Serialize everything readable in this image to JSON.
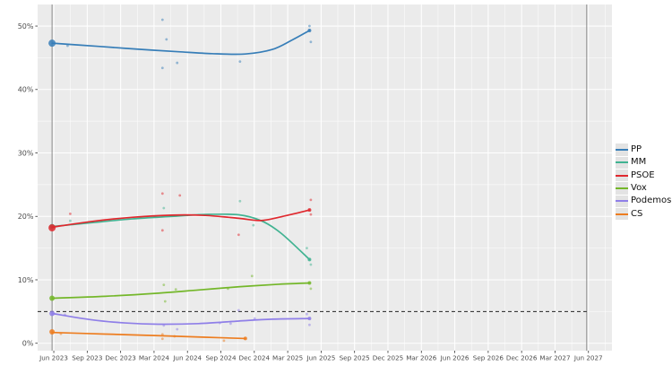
{
  "chart_data": {
    "type": "line",
    "xlabel": "",
    "ylabel": "",
    "x_ticks": [
      {
        "t": 2023.417,
        "label": "Jun 2023"
      },
      {
        "t": 2023.667,
        "label": "Sep 2023"
      },
      {
        "t": 2023.917,
        "label": "Dec 2023"
      },
      {
        "t": 2024.167,
        "label": "Mar 2024"
      },
      {
        "t": 2024.417,
        "label": "Jun 2024"
      },
      {
        "t": 2024.667,
        "label": "Sep 2024"
      },
      {
        "t": 2024.917,
        "label": "Dec 2024"
      },
      {
        "t": 2025.167,
        "label": "Mar 2025"
      },
      {
        "t": 2025.417,
        "label": "Jun 2025"
      },
      {
        "t": 2025.667,
        "label": "Sep 2025"
      },
      {
        "t": 2025.917,
        "label": "Dec 2025"
      },
      {
        "t": 2026.167,
        "label": "Mar 2026"
      },
      {
        "t": 2026.417,
        "label": "Jun 2026"
      },
      {
        "t": 2026.667,
        "label": "Sep 2026"
      },
      {
        "t": 2026.917,
        "label": "Dec 2026"
      },
      {
        "t": 2027.167,
        "label": "Mar 2027"
      },
      {
        "t": 2027.417,
        "label": "Jun 2027"
      }
    ],
    "y_ticks": [
      {
        "v": 0,
        "label": "0%"
      },
      {
        "v": 10,
        "label": "10%"
      },
      {
        "v": 20,
        "label": "20%"
      },
      {
        "v": 30,
        "label": "30%"
      },
      {
        "v": 40,
        "label": "40%"
      },
      {
        "v": 50,
        "label": "50%"
      }
    ],
    "x_range": [
      2023.296,
      2027.593
    ],
    "y_range": [
      -1.17,
      53.4
    ],
    "grid": "on",
    "legend_position": "right",
    "threshold_line": {
      "y": 5,
      "style": "dashed",
      "color": "#222222",
      "x_end": 2027.404
    },
    "event_lines": [
      {
        "t": 2023.404,
        "color": "#8a8a8a"
      },
      {
        "t": 2027.404,
        "color": "#8a8a8a"
      }
    ],
    "series": [
      {
        "name": "PP",
        "color": "#377eb8",
        "election_point": [
          2023.404,
          47.3
        ],
        "end_point": [
          2025.33,
          49.3
        ],
        "line": [
          [
            2023.404,
            47.3
          ],
          [
            2023.75,
            46.8
          ],
          [
            2024.05,
            46.35
          ],
          [
            2024.35,
            45.95
          ],
          [
            2024.6,
            45.65
          ],
          [
            2024.85,
            45.6
          ],
          [
            2025.05,
            46.3
          ],
          [
            2025.2,
            47.8
          ],
          [
            2025.33,
            49.3
          ]
        ],
        "points": [
          [
            2023.52,
            46.9
          ],
          [
            2024.23,
            51.0
          ],
          [
            2024.26,
            47.9
          ],
          [
            2024.23,
            43.4
          ],
          [
            2024.34,
            44.2
          ],
          [
            2024.81,
            44.4
          ],
          [
            2025.33,
            50.0
          ],
          [
            2025.34,
            47.5
          ]
        ]
      },
      {
        "name": "MM",
        "color": "#41b392",
        "election_point": [
          2023.404,
          18.4
        ],
        "end_point": [
          2025.33,
          13.2
        ],
        "line": [
          [
            2023.404,
            18.4
          ],
          [
            2023.7,
            19.0
          ],
          [
            2024.0,
            19.6
          ],
          [
            2024.3,
            20.0
          ],
          [
            2024.55,
            20.3
          ],
          [
            2024.8,
            20.25
          ],
          [
            2024.97,
            19.3
          ],
          [
            2025.12,
            17.3
          ],
          [
            2025.33,
            13.2
          ]
        ],
        "points": [
          [
            2023.54,
            19.3
          ],
          [
            2024.24,
            21.3
          ],
          [
            2024.81,
            22.4
          ],
          [
            2024.91,
            18.6
          ],
          [
            2025.31,
            15.0
          ],
          [
            2025.34,
            12.4
          ]
        ]
      },
      {
        "name": "PSOE",
        "color": "#e0282e",
        "election_point": [
          2023.404,
          18.2
        ],
        "end_point": [
          2025.33,
          21.0
        ],
        "line": [
          [
            2023.404,
            18.3
          ],
          [
            2023.7,
            19.2
          ],
          [
            2024.0,
            19.85
          ],
          [
            2024.3,
            20.2
          ],
          [
            2024.55,
            20.15
          ],
          [
            2024.8,
            19.7
          ],
          [
            2024.97,
            19.35
          ],
          [
            2025.15,
            20.1
          ],
          [
            2025.33,
            21.0
          ]
        ],
        "points": [
          [
            2023.54,
            20.4
          ],
          [
            2024.23,
            23.6
          ],
          [
            2024.36,
            23.3
          ],
          [
            2024.23,
            17.8
          ],
          [
            2024.8,
            17.1
          ],
          [
            2025.34,
            22.6
          ],
          [
            2025.34,
            20.3
          ]
        ]
      },
      {
        "name": "Vox",
        "color": "#74b72a",
        "election_point": [
          2023.404,
          7.1
        ],
        "end_point": [
          2025.33,
          9.5
        ],
        "line": [
          [
            2023.404,
            7.1
          ],
          [
            2023.8,
            7.4
          ],
          [
            2024.2,
            7.9
          ],
          [
            2024.5,
            8.4
          ],
          [
            2024.8,
            8.9
          ],
          [
            2025.1,
            9.3
          ],
          [
            2025.33,
            9.5
          ]
        ],
        "points": [
          [
            2024.24,
            9.2
          ],
          [
            2024.25,
            6.6
          ],
          [
            2024.33,
            8.5
          ],
          [
            2024.72,
            8.6
          ],
          [
            2024.9,
            10.6
          ],
          [
            2025.34,
            8.6
          ]
        ]
      },
      {
        "name": "Podemos",
        "color": "#8f7fe8",
        "election_point": [
          2023.404,
          4.7
        ],
        "end_point": [
          2025.33,
          3.9
        ],
        "line": [
          [
            2023.404,
            4.7
          ],
          [
            2023.7,
            3.7
          ],
          [
            2023.95,
            3.2
          ],
          [
            2024.2,
            3.0
          ],
          [
            2024.5,
            3.1
          ],
          [
            2024.8,
            3.5
          ],
          [
            2025.05,
            3.8
          ],
          [
            2025.33,
            3.9
          ]
        ],
        "points": [
          [
            2023.5,
            4.5
          ],
          [
            2024.24,
            2.8
          ],
          [
            2024.34,
            2.2
          ],
          [
            2024.66,
            3.2
          ],
          [
            2024.74,
            3.1
          ],
          [
            2024.8,
            5.2
          ],
          [
            2024.92,
            3.9
          ],
          [
            2025.31,
            4.6
          ],
          [
            2025.33,
            2.9
          ]
        ]
      },
      {
        "name": "CS",
        "color": "#ed7d20",
        "election_point": [
          2023.404,
          1.8
        ],
        "end_point": [
          2024.85,
          0.75
        ],
        "line": [
          [
            2023.404,
            1.7
          ],
          [
            2023.8,
            1.45
          ],
          [
            2024.2,
            1.2
          ],
          [
            2024.55,
            0.95
          ],
          [
            2024.85,
            0.75
          ]
        ],
        "points": [
          [
            2023.47,
            1.5
          ],
          [
            2024.23,
            1.4
          ],
          [
            2024.23,
            0.7
          ],
          [
            2024.32,
            1.1
          ],
          [
            2024.69,
            0.4
          ]
        ]
      }
    ]
  },
  "legend": {
    "items": [
      {
        "label": "PP"
      },
      {
        "label": "MM"
      },
      {
        "label": "PSOE"
      },
      {
        "label": "Vox"
      },
      {
        "label": "Podemos"
      },
      {
        "label": "CS"
      }
    ]
  },
  "colors": {
    "panel_background": "#ebebeb",
    "grid_major": "#ffffff",
    "axis_text": "#4d4d4d",
    "legend_key_background": "#e3e3e3"
  }
}
